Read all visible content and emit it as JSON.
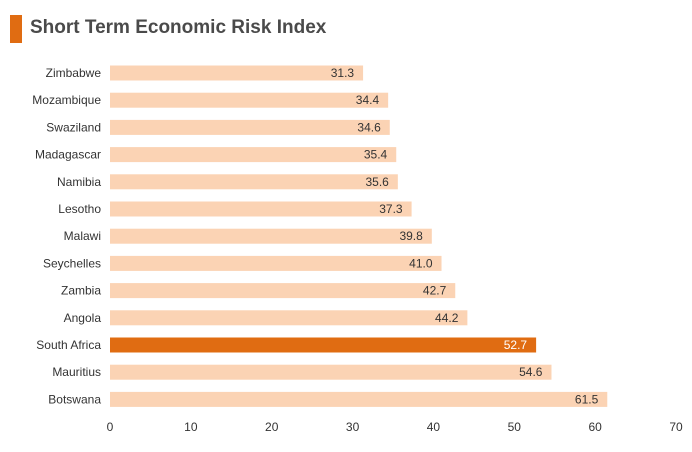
{
  "chart_data": {
    "type": "bar",
    "orientation": "horizontal",
    "title": "Short Term Economic Risk Index",
    "categories": [
      "Zimbabwe",
      "Mozambique",
      "Swaziland",
      "Madagascar",
      "Namibia",
      "Lesotho",
      "Malawi",
      "Seychelles",
      "Zambia",
      "Angola",
      "South Africa",
      "Mauritius",
      "Botswana"
    ],
    "values": [
      31.3,
      34.4,
      34.6,
      35.4,
      35.6,
      37.3,
      39.8,
      41.0,
      42.7,
      44.2,
      52.7,
      54.6,
      61.5
    ],
    "value_labels": [
      "31.3",
      "34.4",
      "34.6",
      "35.4",
      "35.6",
      "37.3",
      "39.8",
      "41.0",
      "42.7",
      "44.2",
      "52.7",
      "54.6",
      "61.5"
    ],
    "highlight": "South Africa",
    "xlim": [
      0,
      70
    ],
    "xticks": [
      "0",
      "10",
      "20",
      "30",
      "40",
      "50",
      "60",
      "70"
    ],
    "grid": false,
    "colors": {
      "bar": "#fbd3b4",
      "highlight": "#e06c12",
      "accent": "#e06c12"
    }
  }
}
